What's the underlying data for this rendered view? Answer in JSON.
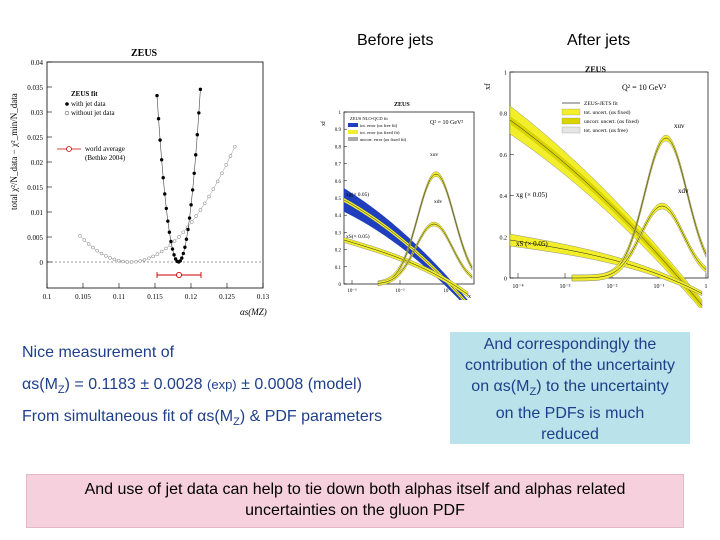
{
  "headers": {
    "before": "Before jets",
    "after": "After jets"
  },
  "left_plot": {
    "title": "ZEUS",
    "ylabel": "total χ²/N_data − χ²_min/N_data",
    "xlabel": "αs(MZ)",
    "legend": [
      "ZEUS fit",
      "with jet data",
      "without jet data",
      "world average",
      "(Bethke 2004)"
    ],
    "yticks": [
      "0",
      "0.005",
      "0.01",
      "0.015",
      "0.02",
      "0.025",
      "0.03",
      "0.035",
      "0.04"
    ],
    "xticks": [
      "0.1",
      "0.105",
      "0.11",
      "0.115",
      "0.12",
      "0.125",
      "0.13"
    ]
  },
  "mid_plot": {
    "title": "ZEUS",
    "q2": "Q² = 10 GeV²",
    "ylabel": "xf",
    "legend": [
      "ZEUS NLO-QCD fit",
      "tot. error (αs free fit)",
      "tot. error (αs fixed fit)",
      "uncorr. error (αs fixed fit)"
    ],
    "curve_labels": [
      "xuv",
      "xdv",
      "xg(× 0.05)",
      "xS(× 0.05)"
    ],
    "yticks": [
      "0",
      "0.1",
      "0.2",
      "0.3",
      "0.4",
      "0.5",
      "0.6",
      "0.7",
      "0.8",
      "0.9",
      "1"
    ],
    "xticks": [
      "10⁻³",
      "10⁻²",
      "10⁻¹"
    ],
    "xlabel": "x"
  },
  "right_plot": {
    "title": "ZEUS",
    "q2": "Q² = 10 GeV²",
    "ylabel": "xf",
    "legend": [
      "ZEUS-JETS fit",
      "tot. uncert. (αs fixed)",
      "uncorr. uncert. (αs fixed)",
      "tot. uncert. (αs free)"
    ],
    "curve_labels": [
      "xuv",
      "xdv",
      "xg (× 0.05)",
      "xS (× 0.05)"
    ],
    "yticks": [
      "0",
      "0.2",
      "0.4",
      "0.6",
      "0.8",
      "1"
    ],
    "xticks": [
      "10⁻⁴",
      "10⁻³",
      "10⁻²",
      "10⁻¹",
      "1"
    ],
    "xlabel": "x"
  },
  "text": {
    "line1": "Nice measurement of",
    "line2_pre": "αs(M",
    "line2_sub": "Z",
    "line2_mid": ") = 0.1183 ± 0.0028 ",
    "line2_exp": "(exp)",
    "line2_post": " ± 0.0008 (model)",
    "line3_pre": "From simultaneous fit of αs(M",
    "line3_sub": "Z",
    "line3_post": ")  & PDF parameters"
  },
  "blue_box": {
    "l1": "And correspondingly the",
    "l2": "contribution of the uncertainty",
    "l3_pre": "on αs(M",
    "l3_sub": "Z",
    "l3_post": ") to the uncertainty",
    "l4": "on the PDFs is much",
    "l5": "reduced"
  },
  "pink_box": {
    "l1": "And use of jet data can help to tie down both alphas itself  and alphas related",
    "l2": "uncertainties on the gluon PDF"
  }
}
